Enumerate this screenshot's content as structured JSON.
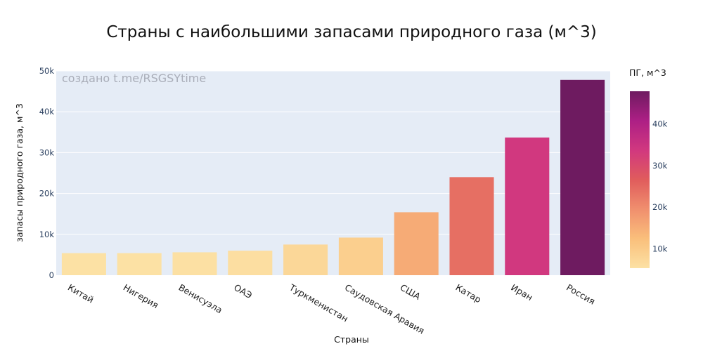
{
  "chart_data": {
    "type": "bar",
    "title": "Страны с наибольшими запасами природного газа (м^3)",
    "xlabel": "Страны",
    "ylabel": "запасы природного газа, м^3",
    "watermark": "создано t.me/RSGSYtime",
    "categories": [
      "Китай",
      "Нигерия",
      "Венисуэла",
      "ОАЭ",
      "Туркменистан",
      "Саудовская Аравия",
      "США",
      "Катар",
      "Иран",
      "Россия"
    ],
    "values": [
      5400,
      5400,
      5600,
      6000,
      7500,
      9200,
      15400,
      24000,
      33700,
      47800
    ],
    "ylim": [
      0,
      50000
    ],
    "yticks": [
      0,
      10000,
      20000,
      30000,
      40000,
      50000
    ],
    "ytick_labels": [
      "0",
      "10k",
      "20k",
      "30k",
      "40k",
      "50k"
    ],
    "grid": true,
    "colorbar": {
      "title": "ПГ, м^3",
      "range": [
        5400,
        47800
      ],
      "ticks": [
        10000,
        20000,
        30000,
        40000
      ],
      "tick_labels": [
        "10k",
        "20k",
        "30k",
        "40k"
      ],
      "colorscale": [
        "#fce1a4",
        "#fabf7b",
        "#f08f6e",
        "#e05c5c",
        "#d1387f",
        "#ad1f85",
        "#6e1b60"
      ]
    }
  }
}
